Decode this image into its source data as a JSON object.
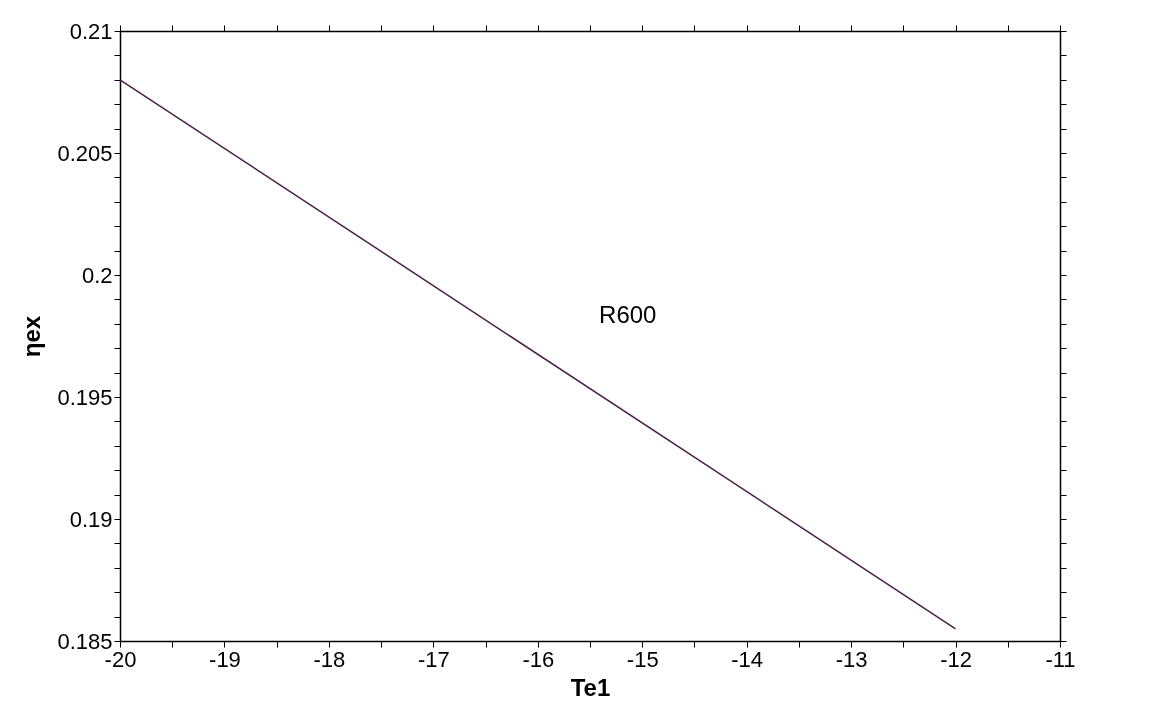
{
  "chart_data": {
    "type": "line",
    "xlabel": "Te1",
    "ylabel": "ηex",
    "x": [
      -20,
      -12
    ],
    "series": [
      {
        "name": "R600",
        "color": "#4b1f4b",
        "values": [
          0.208,
          0.1855
        ]
      }
    ],
    "xlim": [
      -20,
      -11
    ],
    "xticks": [
      -20,
      {
        "value": -19.5,
        "label": null
      },
      -19,
      {
        "value": -18.5,
        "label": null
      },
      -18,
      {
        "value": -17.5,
        "label": null
      },
      -17,
      {
        "value": -16.5,
        "label": null
      },
      -16,
      {
        "value": -15.5,
        "label": null
      },
      -15,
      {
        "value": -14.5,
        "label": null
      },
      -14,
      {
        "value": -13.5,
        "label": null
      },
      -13,
      {
        "value": -12.5,
        "label": null
      },
      -12,
      {
        "value": -11.5,
        "label": null
      },
      -11
    ],
    "ylim": [
      0.185,
      0.21
    ],
    "yticks": [
      0.185,
      {
        "value": 0.186,
        "label": null
      },
      {
        "value": 0.187,
        "label": null
      },
      {
        "value": 0.188,
        "label": null
      },
      {
        "value": 0.189,
        "label": null
      },
      0.19,
      {
        "value": 0.191,
        "label": null
      },
      {
        "value": 0.192,
        "label": null
      },
      {
        "value": 0.193,
        "label": null
      },
      {
        "value": 0.194,
        "label": null
      },
      0.195,
      {
        "value": 0.196,
        "label": null
      },
      {
        "value": 0.197,
        "label": null
      },
      {
        "value": 0.198,
        "label": null
      },
      {
        "value": 0.199,
        "label": null
      },
      0.2,
      {
        "value": 0.201,
        "label": null
      },
      {
        "value": 0.202,
        "label": null
      },
      {
        "value": 0.203,
        "label": null
      },
      {
        "value": 0.204,
        "label": null
      },
      0.205,
      {
        "value": 0.206,
        "label": null
      },
      {
        "value": 0.207,
        "label": null
      },
      {
        "value": 0.208,
        "label": null
      },
      {
        "value": 0.209,
        "label": null
      },
      0.21
    ],
    "grid": false,
    "legend": false,
    "marker": "none",
    "line_style": "solid"
  }
}
